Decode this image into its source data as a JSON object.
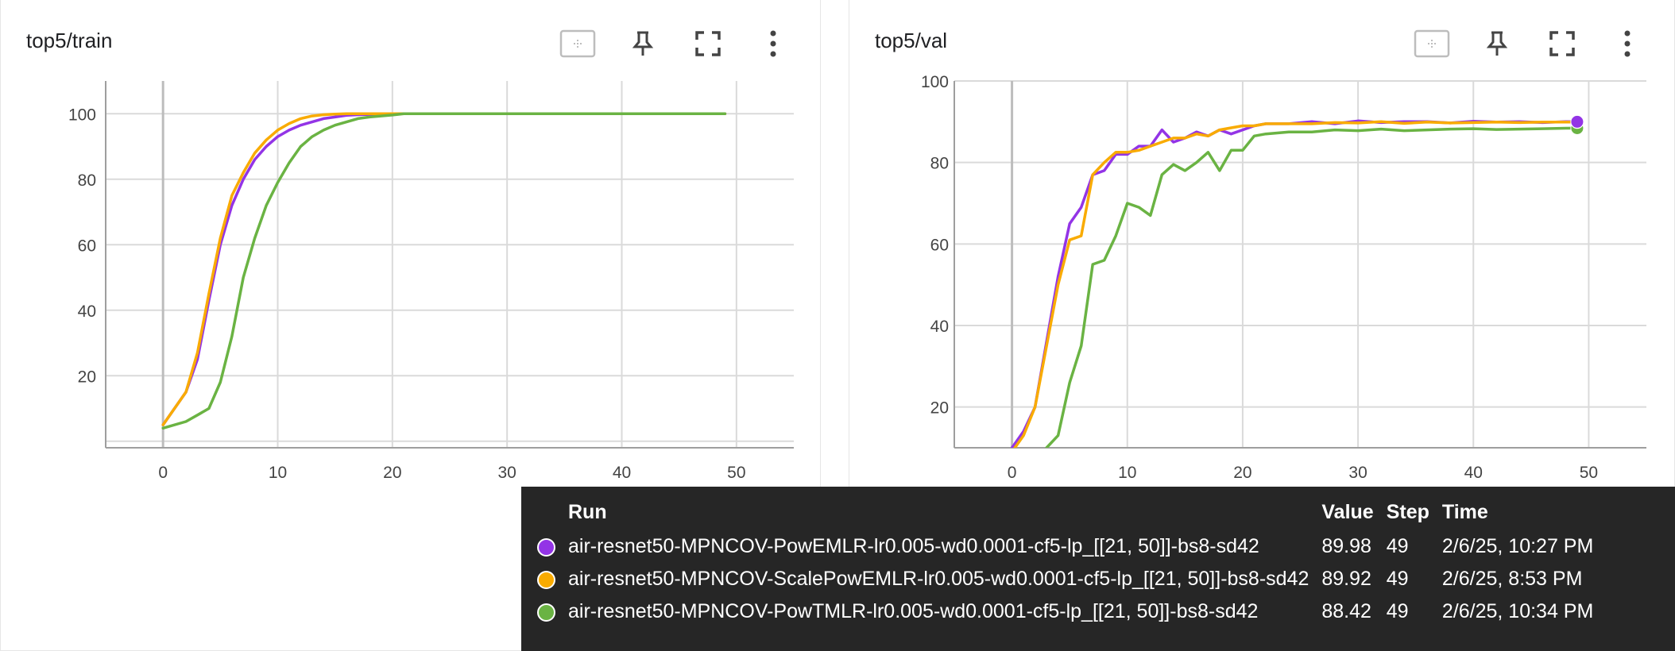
{
  "panels": [
    {
      "title": "top5/train",
      "toolbar": [
        "fit-domain-icon",
        "pin-icon",
        "fullscreen-icon",
        "more-vert-icon"
      ]
    },
    {
      "title": "top5/val",
      "toolbar": [
        "fit-domain-icon",
        "pin-icon",
        "fullscreen-icon",
        "more-vert-icon"
      ]
    }
  ],
  "colors": {
    "powemlr": "#9334e6",
    "scalepowemlr": "#f9ab00",
    "powtmlr": "#6ab343"
  },
  "chart_data": [
    {
      "type": "line",
      "title": "top5/train",
      "xlim": [
        -5,
        55
      ],
      "ylim": [
        -2,
        110
      ],
      "x_ticks": [
        0,
        10,
        20,
        30,
        40,
        50
      ],
      "y_ticks": [
        0,
        20,
        40,
        60,
        80,
        100
      ],
      "y_tick_labels": [
        "",
        "20",
        "40",
        "60",
        "80",
        "100"
      ],
      "grid": true,
      "series": [
        {
          "key": "powemlr",
          "x": [
            0,
            2,
            3,
            4,
            5,
            6,
            7,
            8,
            9,
            10,
            11,
            12,
            13,
            14,
            15,
            16,
            17,
            18,
            20,
            22,
            25,
            30,
            35,
            40,
            45,
            49
          ],
          "y": [
            5,
            15,
            25,
            43,
            60,
            72,
            80,
            86,
            90,
            93,
            95,
            96.5,
            97.5,
            98.5,
            99,
            99.5,
            99.7,
            99.8,
            100,
            100,
            100,
            100,
            100,
            100,
            100,
            100
          ]
        },
        {
          "key": "scalepowemlr",
          "x": [
            0,
            2,
            3,
            4,
            5,
            6,
            7,
            8,
            9,
            10,
            11,
            12,
            13,
            14,
            15,
            16,
            17,
            18,
            20,
            22,
            25,
            30,
            35,
            40,
            45,
            49
          ],
          "y": [
            5,
            15,
            27,
            45,
            62,
            75,
            82,
            88,
            92,
            95,
            97,
            98.5,
            99.3,
            99.7,
            99.9,
            100,
            100,
            100,
            100,
            100,
            100,
            100,
            100,
            100,
            100,
            100
          ]
        },
        {
          "key": "powtmlr",
          "x": [
            0,
            2,
            3,
            4,
            5,
            6,
            7,
            8,
            9,
            10,
            11,
            12,
            13,
            14,
            15,
            16,
            17,
            18,
            19,
            20,
            21,
            22,
            25,
            30,
            35,
            40,
            45,
            49
          ],
          "y": [
            4,
            6,
            8,
            10,
            18,
            32,
            50,
            62,
            72,
            79,
            85,
            90,
            93,
            95,
            96.5,
            97.5,
            98.5,
            99,
            99.3,
            99.6,
            100,
            100,
            100,
            100,
            100,
            100,
            100,
            100
          ]
        }
      ]
    },
    {
      "type": "line",
      "title": "top5/val",
      "xlim": [
        -5,
        55
      ],
      "ylim": [
        10,
        100
      ],
      "x_ticks": [
        0,
        10,
        20,
        30,
        40,
        50
      ],
      "y_ticks": [
        20,
        40,
        60,
        80,
        100
      ],
      "y_tick_labels": [
        "20",
        "40",
        "60",
        "80",
        "100"
      ],
      "grid": true,
      "series": [
        {
          "key": "powemlr",
          "x": [
            0,
            1,
            2,
            3,
            4,
            5,
            6,
            7,
            8,
            9,
            10,
            11,
            12,
            13,
            14,
            15,
            16,
            17,
            18,
            19,
            20,
            21,
            22,
            24,
            26,
            28,
            30,
            32,
            34,
            36,
            38,
            40,
            42,
            44,
            46,
            48,
            49
          ],
          "y": [
            10,
            14,
            20,
            36,
            52,
            65,
            69,
            77,
            78,
            82,
            82,
            84,
            84,
            88,
            85,
            86,
            87.5,
            86.5,
            88,
            87,
            88,
            89,
            89.5,
            89.5,
            90,
            89.5,
            90.2,
            89.8,
            90,
            90,
            89.7,
            90.1,
            89.9,
            90,
            89.8,
            90,
            89.98
          ]
        },
        {
          "key": "scalepowemlr",
          "x": [
            0,
            1,
            2,
            3,
            4,
            5,
            6,
            7,
            8,
            9,
            10,
            11,
            12,
            13,
            14,
            15,
            16,
            17,
            18,
            19,
            20,
            21,
            22,
            24,
            26,
            28,
            30,
            32,
            34,
            36,
            38,
            40,
            42,
            44,
            46,
            48,
            49
          ],
          "y": [
            9,
            13,
            20,
            35,
            50,
            61,
            62,
            77,
            80,
            82.5,
            82.5,
            83,
            84,
            85,
            86,
            86,
            87,
            86.5,
            88,
            88.5,
            89,
            89,
            89.5,
            89.5,
            89.5,
            89.8,
            89.7,
            90,
            89.6,
            89.9,
            89.7,
            89.8,
            89.9,
            89.8,
            89.9,
            89.9,
            89.92
          ]
        },
        {
          "key": "powtmlr",
          "x": [
            3,
            4,
            5,
            6,
            7,
            8,
            9,
            10,
            11,
            12,
            13,
            14,
            15,
            16,
            17,
            18,
            19,
            20,
            21,
            22,
            24,
            26,
            28,
            30,
            32,
            34,
            36,
            38,
            40,
            42,
            44,
            46,
            48,
            49
          ],
          "y": [
            10,
            13,
            26,
            35,
            55,
            56,
            62,
            70,
            69,
            67,
            77,
            79.5,
            78,
            80,
            82.5,
            78,
            83,
            83,
            86.5,
            87,
            87.5,
            87.5,
            88,
            87.8,
            88.2,
            87.8,
            88,
            88.2,
            88.3,
            88.1,
            88.2,
            88.3,
            88.4,
            88.42
          ]
        }
      ]
    }
  ],
  "tooltip": {
    "headers": {
      "run": "Run",
      "value": "Value",
      "step": "Step",
      "time": "Time"
    },
    "rows": [
      {
        "color_key": "powemlr",
        "run": "air-resnet50-MPNCOV-PowEMLR-lr0.005-wd0.0001-cf5-lp_[[21, 50]]-bs8-sd42",
        "value": "89.98",
        "step": "49",
        "time": "2/6/25, 10:27 PM"
      },
      {
        "color_key": "scalepowemlr",
        "run": "air-resnet50-MPNCOV-ScalePowEMLR-lr0.005-wd0.0001-cf5-lp_[[21, 50]]-bs8-sd42",
        "value": "89.92",
        "step": "49",
        "time": "2/6/25, 8:53 PM"
      },
      {
        "color_key": "powtmlr",
        "run": "air-resnet50-MPNCOV-PowTMLR-lr0.005-wd0.0001-cf5-lp_[[21, 50]]-bs8-sd42",
        "value": "88.42",
        "step": "49",
        "time": "2/6/25, 10:34 PM"
      }
    ]
  }
}
